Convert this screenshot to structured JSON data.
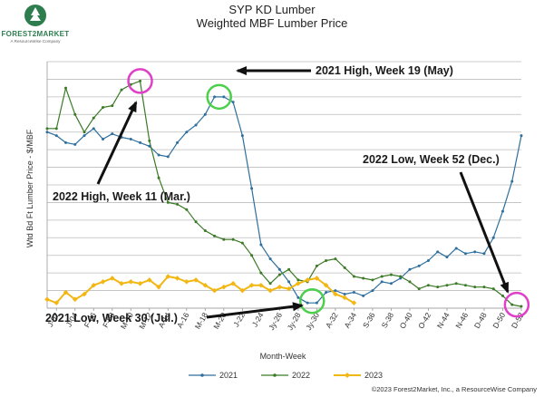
{
  "logo": {
    "name": "FOREST2MARKET",
    "sub": "A ResourceWise Company",
    "color": "#2e7d4f"
  },
  "chart_data": {
    "type": "line",
    "title": "SYP KD Lumber",
    "subtitle": "Weighted MBF Lumber Price",
    "xlabel": "Month-Week",
    "ylabel": "Wtd Bd Ft Lumber Price - $/MBF",
    "tick_labels": [
      "J-02",
      "J-04",
      "F-06",
      "F-08",
      "M-10",
      "M-12",
      "A-14",
      "A-16",
      "M-18",
      "M-20",
      "J-22",
      "J-24",
      "Jy-26",
      "Jy-28",
      "Jy-30",
      "A-32",
      "A-34",
      "S-36",
      "S-38",
      "O-40",
      "O-42",
      "N-44",
      "N-46",
      "D-48",
      "D-50",
      "D-52"
    ],
    "x_range": [
      1,
      52
    ],
    "y_index_range": [
      0,
      14
    ],
    "y_note": "No numeric y tick labels are printed; y values are in gridline units (0 = bottom gridline, 14 = top gridline).",
    "grid": true,
    "legend_position": "bottom",
    "colors": {
      "2021": "#2e6f9e",
      "2022": "#3b7a26",
      "2023": "#f2b713",
      "highlight_circle": "#e040c8",
      "green_circle": "#4cd04c"
    },
    "series": [
      {
        "name": "2021",
        "color": "#2e6f9e",
        "x": [
          1,
          2,
          3,
          4,
          5,
          6,
          7,
          8,
          9,
          10,
          11,
          12,
          13,
          14,
          15,
          16,
          17,
          18,
          19,
          20,
          21,
          22,
          23,
          24,
          25,
          26,
          27,
          28,
          29,
          30,
          31,
          32,
          33,
          34,
          35,
          36,
          37,
          38,
          39,
          40,
          41,
          42,
          43,
          44,
          45,
          46,
          47,
          48,
          49,
          50,
          51,
          52
        ],
        "y": [
          10.0,
          9.8,
          9.4,
          9.3,
          9.8,
          10.2,
          9.6,
          9.9,
          9.7,
          9.6,
          9.4,
          9.2,
          8.7,
          8.6,
          9.4,
          10.0,
          10.4,
          11.0,
          12.0,
          12.0,
          11.7,
          9.8,
          6.8,
          3.6,
          2.8,
          2.2,
          1.5,
          0.6,
          0.3,
          0.3,
          0.9,
          1.0,
          0.8,
          0.9,
          0.7,
          1.0,
          1.5,
          1.4,
          1.7,
          2.2,
          2.4,
          2.7,
          3.2,
          2.9,
          3.4,
          3.1,
          3.2,
          3.1,
          4.0,
          5.5,
          7.2,
          9.8
        ]
      },
      {
        "name": "2022",
        "color": "#3b7a26",
        "x": [
          1,
          2,
          3,
          4,
          5,
          6,
          7,
          8,
          9,
          10,
          11,
          12,
          13,
          14,
          15,
          16,
          17,
          18,
          19,
          20,
          21,
          22,
          23,
          24,
          25,
          26,
          27,
          28,
          29,
          30,
          31,
          32,
          33,
          34,
          35,
          36,
          37,
          38,
          39,
          40,
          41,
          42,
          43,
          44,
          45,
          46,
          47,
          48,
          49,
          50,
          51,
          52
        ],
        "y": [
          10.2,
          10.2,
          12.5,
          11.0,
          10.0,
          10.8,
          11.4,
          11.5,
          12.4,
          12.7,
          12.9,
          9.5,
          7.4,
          6.0,
          5.9,
          5.6,
          4.9,
          4.4,
          4.1,
          3.9,
          3.9,
          3.7,
          3.0,
          2.0,
          1.4,
          1.9,
          2.2,
          1.6,
          1.5,
          2.4,
          2.7,
          2.8,
          2.3,
          1.8,
          1.7,
          1.6,
          1.8,
          1.9,
          1.8,
          1.5,
          1.1,
          1.3,
          1.2,
          1.3,
          1.4,
          1.3,
          1.2,
          1.2,
          1.1,
          0.7,
          0.2,
          0.1
        ]
      },
      {
        "name": "2023",
        "color": "#f2b713",
        "x": [
          1,
          2,
          3,
          4,
          5,
          6,
          7,
          8,
          9,
          10,
          11,
          12,
          13,
          14,
          15,
          16,
          17,
          18,
          19,
          20,
          21,
          22,
          23,
          24,
          25,
          26,
          27,
          28,
          29,
          30,
          31,
          32,
          33,
          34
        ],
        "y": [
          0.5,
          0.3,
          0.9,
          0.5,
          0.8,
          1.3,
          1.5,
          1.7,
          1.4,
          1.5,
          1.4,
          1.6,
          1.2,
          1.8,
          1.7,
          1.5,
          1.6,
          1.3,
          1.0,
          1.2,
          1.4,
          1.0,
          1.3,
          1.3,
          1.0,
          1.2,
          1.1,
          1.4,
          1.6,
          1.7,
          1.3,
          0.8,
          0.6,
          0.3
        ]
      }
    ],
    "annotations": [
      {
        "text": "2021 High, Week 19 (May)",
        "x": 19.5,
        "y": 12.0,
        "circle": "green"
      },
      {
        "text": "2022 High, Week 11 (Mar.)",
        "x": 11,
        "y": 12.9,
        "circle": "magenta"
      },
      {
        "text": "2022 Low, Week 52 (Dec.)",
        "x": 51.5,
        "y": 0.2,
        "circle": "magenta"
      },
      {
        "text": "2021 Low, Week 30 (Jul.)",
        "x": 29.5,
        "y": 0.4,
        "circle": "green"
      }
    ]
  },
  "footer": {
    "copyright": "©2023 Forest2Market, Inc., a ResourceWise Company"
  }
}
